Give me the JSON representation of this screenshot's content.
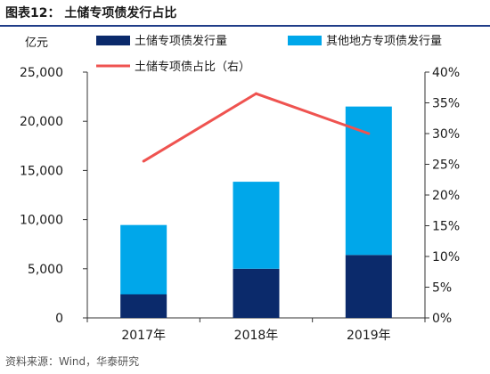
{
  "figure": {
    "title": "图表12：  土储专项债发行占比",
    "source": "资料来源：Wind，华泰研究"
  },
  "chart_data": {
    "type": "bar",
    "stacked": true,
    "categories": [
      "2017年",
      "2018年",
      "2019年"
    ],
    "series": [
      {
        "name": "土储专项债发行量",
        "type": "bar",
        "axis": "left",
        "color": "#0b2a6b",
        "values": [
          2400,
          5000,
          6400
        ]
      },
      {
        "name": "其他地方专项债发行量",
        "type": "bar",
        "axis": "left",
        "color": "#00a7ea",
        "values": [
          7050,
          8850,
          15100
        ]
      },
      {
        "name": "土储专项债占比（右）",
        "type": "line",
        "axis": "right",
        "color": "#ef5350",
        "values": [
          25.5,
          36.5,
          30
        ]
      }
    ],
    "y_left": {
      "unit": "亿元",
      "ylim": [
        0,
        25000
      ],
      "ticks": [
        0,
        5000,
        10000,
        15000,
        20000,
        25000
      ],
      "tick_labels": [
        "0",
        "5,000",
        "10,000",
        "15,000",
        "20,000",
        "25,000"
      ]
    },
    "y_right": {
      "ylim": [
        0,
        40
      ],
      "ticks": [
        0,
        5,
        10,
        15,
        20,
        25,
        30,
        35,
        40
      ],
      "tick_labels": [
        "0%",
        "5%",
        "10%",
        "15%",
        "20%",
        "25%",
        "30%",
        "35%",
        "40%"
      ]
    },
    "grid": false,
    "legend_position": "top"
  }
}
